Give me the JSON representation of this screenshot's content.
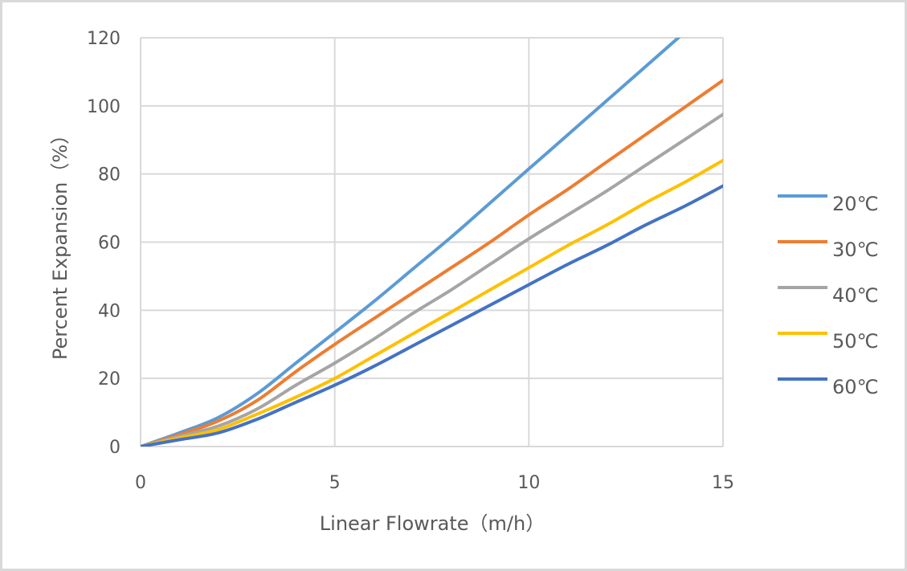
{
  "chart_data": {
    "type": "line",
    "title": "",
    "xlabel": "Linear Flowrate（m/h）",
    "ylabel": "Percent  Expansion（%）",
    "xlim": [
      0,
      15
    ],
    "ylim": [
      0,
      120
    ],
    "x_ticks": [
      "0",
      "5",
      "10",
      "15"
    ],
    "y_ticks": [
      "0",
      "20",
      "40",
      "60",
      "80",
      "100",
      "120"
    ],
    "grid": true,
    "legend_position": "right",
    "series": [
      {
        "name": "20℃",
        "color": "#5B9BD5",
        "x": [
          0,
          1,
          2,
          3,
          4,
          5,
          6,
          7,
          8,
          9,
          10,
          11,
          12,
          13,
          14
        ],
        "y": [
          0,
          4,
          8.5,
          15.5,
          24.5,
          33.5,
          42.5,
          52,
          61.5,
          71.5,
          81.5,
          91.5,
          101.5,
          111.5,
          121.5
        ]
      },
      {
        "name": "30℃",
        "color": "#ED7D31",
        "x": [
          0,
          1,
          2,
          3,
          4,
          5,
          6,
          7,
          8,
          9,
          10,
          11,
          12,
          13,
          14,
          15
        ],
        "y": [
          0,
          3.5,
          7.5,
          13.5,
          22,
          30,
          37.5,
          45,
          52.5,
          60,
          68,
          75.5,
          83.5,
          91.5,
          99.5,
          107.5
        ]
      },
      {
        "name": "40℃",
        "color": "#A5A5A5",
        "x": [
          0,
          1,
          2,
          3,
          4,
          5,
          6,
          7,
          8,
          9,
          10,
          11,
          12,
          13,
          14,
          15
        ],
        "y": [
          0,
          3,
          6,
          11,
          18,
          24.5,
          31.5,
          39,
          46,
          53.5,
          61,
          68,
          75,
          82.5,
          90,
          97.5
        ]
      },
      {
        "name": "50℃",
        "color": "#FFC000",
        "x": [
          0,
          1,
          2,
          3,
          4,
          5,
          6,
          7,
          8,
          9,
          10,
          11,
          12,
          13,
          14,
          15
        ],
        "y": [
          0,
          2.5,
          5,
          9.5,
          14.5,
          20,
          26.5,
          33,
          39.5,
          46,
          52.5,
          59,
          65,
          71.5,
          77.5,
          84
        ]
      },
      {
        "name": "60℃",
        "color": "#4472C4",
        "x": [
          0,
          1,
          2,
          3,
          4,
          5,
          6,
          7,
          8,
          9,
          10,
          11,
          12,
          13,
          14,
          15
        ],
        "y": [
          0,
          2,
          4,
          8,
          13,
          18,
          23.5,
          29.5,
          35.5,
          41.5,
          47.5,
          53.5,
          59,
          65,
          70.5,
          76.5
        ]
      }
    ]
  }
}
